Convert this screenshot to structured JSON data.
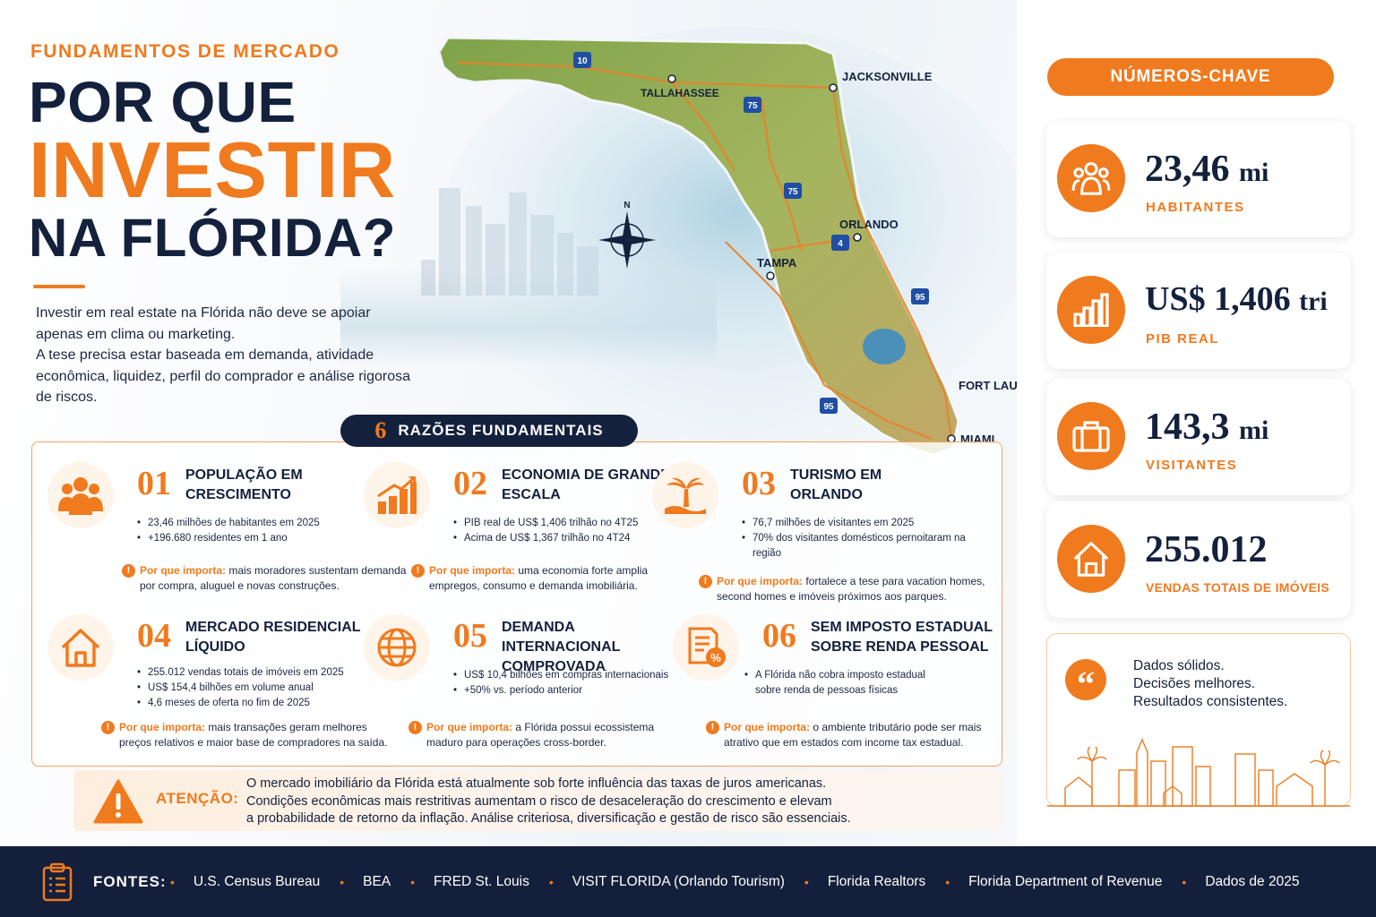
{
  "header": {
    "eyebrow": "FUNDAMENTOS DE MERCADO",
    "title_line1": "POR QUE",
    "title_line2": "INVESTIR",
    "title_line3": "NA FLÓRIDA?",
    "intro_p1": "Investir em real estate na Flórida não deve se apoiar apenas em clima ou marketing.",
    "intro_p2": "A tese precisa estar baseada em demanda, atividade econômica, liquidez, perfil do comprador e análise rigorosa de riscos."
  },
  "map": {
    "cities": [
      "JACKSONVILLE",
      "TALLAHASSEE",
      "ORLANDO",
      "TAMPA",
      "FORT LAUDERDALE",
      "MIAMI"
    ],
    "highways": [
      "10",
      "75",
      "75",
      "4",
      "95",
      "95"
    ],
    "compass_letter": "N",
    "colors": {
      "land": "#8fae5a",
      "sea": "#bcd9e6",
      "road": "#e8822a"
    }
  },
  "reasons": {
    "count": "6",
    "title": "RAZÕES FUNDAMENTAIS",
    "why_label": "Por que importa:",
    "items": [
      {
        "number": "01",
        "title": "POPULAÇÃO EM CRESCIMENTO",
        "icon": "people-icon",
        "bullets": [
          "23,46 milhões de habitantes em 2025",
          "+196.680 residentes em 1 ano"
        ],
        "why": "mais moradores sustentam demanda por compra, aluguel e novas construções."
      },
      {
        "number": "02",
        "title": "ECONOMIA DE GRANDE ESCALA",
        "icon": "growth-chart-icon",
        "bullets": [
          "PIB real de US$ 1,406 trilhão no 4T25",
          "Acima de US$ 1,367 trilhão no 4T24"
        ],
        "why": "uma economia forte amplia empregos, consumo e demanda imobiliária."
      },
      {
        "number": "03",
        "title": "TURISMO EM ORLANDO",
        "icon": "palm-beach-icon",
        "bullets": [
          "76,7 milhões de visitantes em 2025",
          "70% dos visitantes domésticos pernoitaram na região"
        ],
        "why": "fortalece a tese para vacation homes, second homes e imóveis próximos aos parques."
      },
      {
        "number": "04",
        "title": "MERCADO RESIDENCIAL LÍQUIDO",
        "icon": "house-icon",
        "bullets": [
          "255.012 vendas totais de imóveis em 2025",
          "US$ 154,4 bilhões em volume anual",
          "4,6 meses de oferta no fim de 2025"
        ],
        "why": "mais transações geram melhores preços relativos e maior base de compradores na saída."
      },
      {
        "number": "05",
        "title": "DEMANDA INTERNACIONAL COMPROVADA",
        "icon": "globe-icon",
        "bullets": [
          "US$ 10,4 bilhões em compras internacionais",
          "+50% vs. período anterior"
        ],
        "why": "a Flórida possui ecossistema maduro para operações cross-border."
      },
      {
        "number": "06",
        "title": "SEM IMPOSTO ESTADUAL SOBRE RENDA PESSOAL",
        "icon": "tax-document-icon",
        "bullets": [
          "A Flórida não cobra imposto estadual sobre renda de pessoas físicas"
        ],
        "why": "o ambiente tributário pode ser mais atrativo que em estados com income tax estadual."
      }
    ]
  },
  "attention": {
    "label": "ATENÇÃO:",
    "line1": "O mercado imobiliário da Flórida está atualmente sob forte influência das taxas de juros americanas.",
    "line2": "Condições econômicas mais restritivas aumentam o risco de desaceleração do crescimento e elevam",
    "line3": "a probabilidade de retorno da inflação. Análise criteriosa, diversificação e gestão de risco são essenciais."
  },
  "key_numbers": {
    "title": "NÚMEROS-CHAVE",
    "stats": [
      {
        "value": "23,46",
        "unit": "mi",
        "label": "HABITANTES",
        "icon": "people-icon"
      },
      {
        "value": "US$ 1,406",
        "unit": "tri",
        "label": "PIB REAL",
        "icon": "bar-chart-icon"
      },
      {
        "value": "143,3",
        "unit": "mi",
        "label": "VISITANTES",
        "icon": "suitcase-icon"
      },
      {
        "value": "255.012",
        "unit": "",
        "label": "VENDAS TOTAIS DE IMÓVEIS",
        "icon": "house-icon"
      }
    ],
    "quote": [
      "Dados sólidos.",
      "Decisões melhores.",
      "Resultados consistentes."
    ]
  },
  "footer": {
    "label": "FONTES:",
    "sources": [
      "U.S. Census Bureau",
      "BEA",
      "FRED St. Louis",
      "VISIT FLORIDA (Orlando Tourism)",
      "Florida Realtors",
      "Florida Department of Revenue",
      "Dados de 2025"
    ]
  },
  "colors": {
    "navy": "#14213d",
    "orange": "#f07a1e",
    "footer_bg": "#141f3b"
  }
}
